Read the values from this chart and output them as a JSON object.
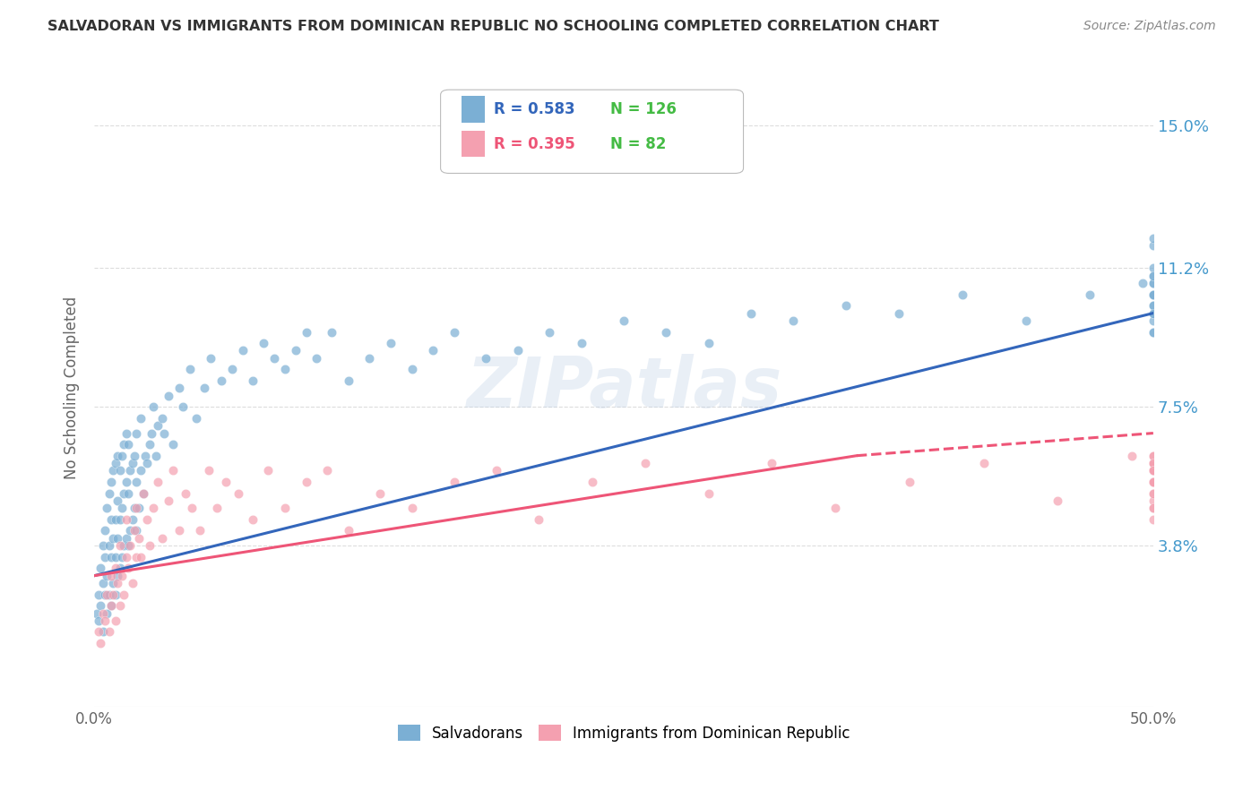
{
  "title": "SALVADORAN VS IMMIGRANTS FROM DOMINICAN REPUBLIC NO SCHOOLING COMPLETED CORRELATION CHART",
  "source": "Source: ZipAtlas.com",
  "ylabel": "No Schooling Completed",
  "yticks": [
    "3.8%",
    "7.5%",
    "11.2%",
    "15.0%"
  ],
  "ytick_vals": [
    0.038,
    0.075,
    0.112,
    0.15
  ],
  "xlim": [
    0.0,
    0.5
  ],
  "ylim": [
    -0.005,
    0.165
  ],
  "blue_R": "0.583",
  "blue_N": "126",
  "pink_R": "0.395",
  "pink_N": "82",
  "blue_color": "#7BAFD4",
  "pink_color": "#F4A0B0",
  "blue_line_color": "#3366BB",
  "pink_line_color": "#EE5577",
  "legend_label_blue": "Salvadorans",
  "legend_label_pink": "Immigrants from Dominican Republic",
  "watermark": "ZIPatlas",
  "background_color": "#ffffff",
  "grid_color": "#dddddd",
  "title_color": "#333333",
  "blue_scatter": {
    "x": [
      0.001,
      0.002,
      0.002,
      0.003,
      0.003,
      0.004,
      0.004,
      0.004,
      0.005,
      0.005,
      0.005,
      0.006,
      0.006,
      0.006,
      0.007,
      0.007,
      0.007,
      0.008,
      0.008,
      0.008,
      0.008,
      0.009,
      0.009,
      0.009,
      0.01,
      0.01,
      0.01,
      0.01,
      0.011,
      0.011,
      0.011,
      0.011,
      0.012,
      0.012,
      0.012,
      0.013,
      0.013,
      0.013,
      0.014,
      0.014,
      0.014,
      0.015,
      0.015,
      0.015,
      0.016,
      0.016,
      0.016,
      0.017,
      0.017,
      0.018,
      0.018,
      0.019,
      0.019,
      0.02,
      0.02,
      0.02,
      0.021,
      0.022,
      0.022,
      0.023,
      0.024,
      0.025,
      0.026,
      0.027,
      0.028,
      0.029,
      0.03,
      0.032,
      0.033,
      0.035,
      0.037,
      0.04,
      0.042,
      0.045,
      0.048,
      0.052,
      0.055,
      0.06,
      0.065,
      0.07,
      0.075,
      0.08,
      0.085,
      0.09,
      0.095,
      0.1,
      0.105,
      0.112,
      0.12,
      0.13,
      0.14,
      0.15,
      0.16,
      0.17,
      0.185,
      0.2,
      0.215,
      0.23,
      0.25,
      0.27,
      0.29,
      0.31,
      0.33,
      0.355,
      0.38,
      0.41,
      0.44,
      0.47,
      0.495,
      0.5,
      0.5,
      0.5,
      0.5,
      0.5,
      0.5,
      0.5,
      0.5,
      0.5,
      0.5,
      0.5,
      0.5,
      0.5,
      0.5,
      0.5,
      0.5,
      0.5
    ],
    "y": [
      0.02,
      0.018,
      0.025,
      0.022,
      0.032,
      0.015,
      0.028,
      0.038,
      0.025,
      0.035,
      0.042,
      0.02,
      0.03,
      0.048,
      0.025,
      0.038,
      0.052,
      0.022,
      0.035,
      0.045,
      0.055,
      0.028,
      0.04,
      0.058,
      0.025,
      0.035,
      0.045,
      0.06,
      0.03,
      0.04,
      0.05,
      0.062,
      0.032,
      0.045,
      0.058,
      0.035,
      0.048,
      0.062,
      0.038,
      0.052,
      0.065,
      0.04,
      0.055,
      0.068,
      0.038,
      0.052,
      0.065,
      0.042,
      0.058,
      0.045,
      0.06,
      0.048,
      0.062,
      0.042,
      0.055,
      0.068,
      0.048,
      0.058,
      0.072,
      0.052,
      0.062,
      0.06,
      0.065,
      0.068,
      0.075,
      0.062,
      0.07,
      0.072,
      0.068,
      0.078,
      0.065,
      0.08,
      0.075,
      0.085,
      0.072,
      0.08,
      0.088,
      0.082,
      0.085,
      0.09,
      0.082,
      0.092,
      0.088,
      0.085,
      0.09,
      0.095,
      0.088,
      0.095,
      0.082,
      0.088,
      0.092,
      0.085,
      0.09,
      0.095,
      0.088,
      0.09,
      0.095,
      0.092,
      0.098,
      0.095,
      0.092,
      0.1,
      0.098,
      0.102,
      0.1,
      0.105,
      0.098,
      0.105,
      0.108,
      0.095,
      0.102,
      0.098,
      0.105,
      0.108,
      0.1,
      0.105,
      0.095,
      0.11,
      0.102,
      0.108,
      0.1,
      0.112,
      0.118,
      0.105,
      0.11,
      0.12
    ]
  },
  "pink_scatter": {
    "x": [
      0.002,
      0.003,
      0.004,
      0.005,
      0.006,
      0.007,
      0.008,
      0.008,
      0.009,
      0.01,
      0.01,
      0.011,
      0.012,
      0.012,
      0.013,
      0.014,
      0.015,
      0.015,
      0.016,
      0.017,
      0.018,
      0.019,
      0.02,
      0.02,
      0.021,
      0.022,
      0.023,
      0.025,
      0.026,
      0.028,
      0.03,
      0.032,
      0.035,
      0.037,
      0.04,
      0.043,
      0.046,
      0.05,
      0.054,
      0.058,
      0.062,
      0.068,
      0.075,
      0.082,
      0.09,
      0.1,
      0.11,
      0.12,
      0.135,
      0.15,
      0.17,
      0.19,
      0.21,
      0.235,
      0.26,
      0.29,
      0.32,
      0.35,
      0.385,
      0.42,
      0.455,
      0.49,
      0.5,
      0.5,
      0.5,
      0.5,
      0.5,
      0.5,
      0.5,
      0.5,
      0.5,
      0.5,
      0.5,
      0.5,
      0.5,
      0.5,
      0.5,
      0.5,
      0.5,
      0.5,
      0.5,
      0.5
    ],
    "y": [
      0.015,
      0.012,
      0.02,
      0.018,
      0.025,
      0.015,
      0.022,
      0.03,
      0.025,
      0.018,
      0.032,
      0.028,
      0.022,
      0.038,
      0.03,
      0.025,
      0.035,
      0.045,
      0.032,
      0.038,
      0.028,
      0.042,
      0.035,
      0.048,
      0.04,
      0.035,
      0.052,
      0.045,
      0.038,
      0.048,
      0.055,
      0.04,
      0.05,
      0.058,
      0.042,
      0.052,
      0.048,
      0.042,
      0.058,
      0.048,
      0.055,
      0.052,
      0.045,
      0.058,
      0.048,
      0.055,
      0.058,
      0.042,
      0.052,
      0.048,
      0.055,
      0.058,
      0.045,
      0.055,
      0.06,
      0.052,
      0.06,
      0.048,
      0.055,
      0.06,
      0.05,
      0.062,
      0.048,
      0.055,
      0.06,
      0.052,
      0.058,
      0.06,
      0.055,
      0.05,
      0.058,
      0.062,
      0.045,
      0.055,
      0.06,
      0.052,
      0.058,
      0.062,
      0.048,
      0.055,
      0.06,
      0.058
    ]
  },
  "blue_line": {
    "x0": 0.0,
    "y0": 0.03,
    "x1": 0.5,
    "y1": 0.1
  },
  "pink_line_solid": {
    "x0": 0.0,
    "y0": 0.03,
    "x1": 0.36,
    "y1": 0.062
  },
  "pink_line_dashed": {
    "x0": 0.36,
    "y0": 0.062,
    "x1": 0.5,
    "y1": 0.068
  }
}
